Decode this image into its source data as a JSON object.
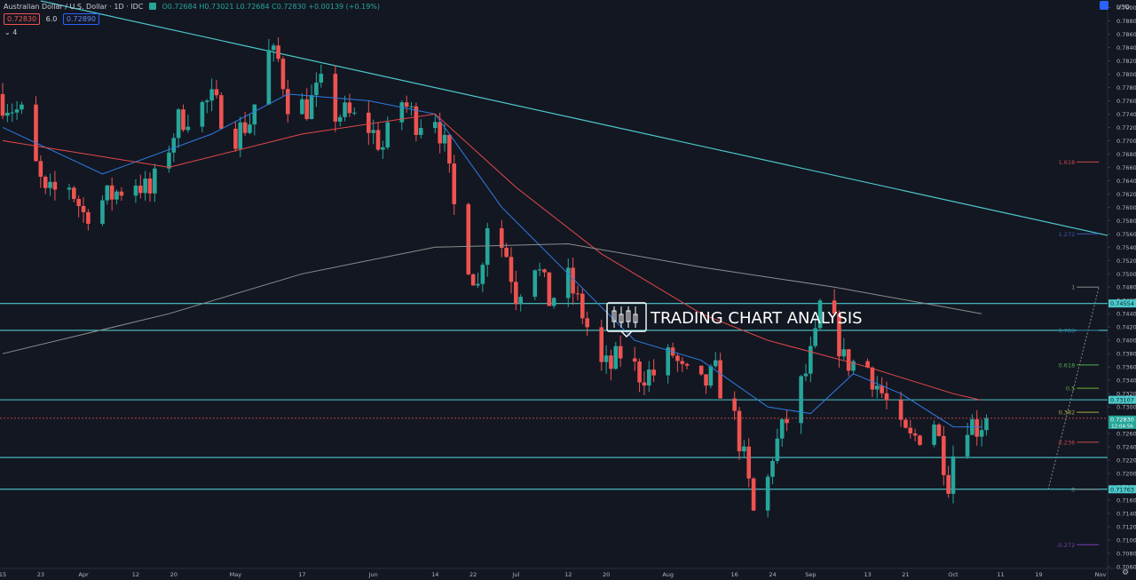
{
  "header": {
    "symbol": "Australian Dollar / U.S. Dollar · 1D · IDC",
    "open": "O0.72684",
    "high": "H0.73021",
    "low": "L0.72684",
    "close": "C0.72830",
    "change": "+0.00139 (+0.19%)",
    "sell_price": "0.72830",
    "spread": "6.0",
    "buy_price": "0.72890",
    "indicator_count": "4"
  },
  "price_axis": {
    "currency": "USD",
    "countdown": "12:04:56"
  },
  "chart_data": {
    "type": "candlestick",
    "title": "",
    "y_axis": {
      "min": 0.706,
      "max": 0.791,
      "tick_step": 0.002,
      "tick_labels": [
        "0.79000",
        "0.78800",
        "0.78600",
        "0.78400",
        "0.78200",
        "0.78000",
        "0.77800",
        "0.77600",
        "0.77400",
        "0.77200",
        "0.77000",
        "0.76800",
        "0.76600",
        "0.76400",
        "0.76200",
        "0.76000",
        "0.75800",
        "0.75600",
        "0.75400",
        "0.75200",
        "0.75000",
        "0.74800",
        "0.74600",
        "0.74400",
        "0.74200",
        "0.74000",
        "0.73800",
        "0.73600",
        "0.73400",
        "0.73200",
        "0.73000",
        "0.72800",
        "0.72600",
        "0.72400",
        "0.72200",
        "0.72000",
        "0.71800",
        "0.71600",
        "0.71400",
        "0.71200",
        "0.71000",
        "0.70800",
        "0.70600"
      ]
    },
    "x_axis": {
      "start": "2021-03-15",
      "end": "2021-11-01",
      "tick_labels": [
        {
          "date": "2021-03-15",
          "label": "15"
        },
        {
          "date": "2021-03-23",
          "label": "23"
        },
        {
          "date": "2021-04-01",
          "label": "Apr"
        },
        {
          "date": "2021-04-12",
          "label": "12"
        },
        {
          "date": "2021-04-20",
          "label": "20"
        },
        {
          "date": "2021-05-03",
          "label": "May"
        },
        {
          "date": "2021-05-17",
          "label": "17"
        },
        {
          "date": "2021-06-01",
          "label": "Jun"
        },
        {
          "date": "2021-06-14",
          "label": "14"
        },
        {
          "date": "2021-06-22",
          "label": "22"
        },
        {
          "date": "2021-07-01",
          "label": "Jul"
        },
        {
          "date": "2021-07-12",
          "label": "12"
        },
        {
          "date": "2021-07-20",
          "label": "20"
        },
        {
          "date": "2021-08-02",
          "label": "Aug"
        },
        {
          "date": "2021-08-16",
          "label": "16"
        },
        {
          "date": "2021-08-24",
          "label": "24"
        },
        {
          "date": "2021-09-01",
          "label": "Sep"
        },
        {
          "date": "2021-09-13",
          "label": "13"
        },
        {
          "date": "2021-09-21",
          "label": "21"
        },
        {
          "date": "2021-10-01",
          "label": "Oct"
        },
        {
          "date": "2021-10-11",
          "label": "11"
        },
        {
          "date": "2021-10-19",
          "label": "19"
        },
        {
          "date": "2021-11-01",
          "label": "Nov"
        }
      ]
    },
    "price_path": {
      "first_date": "2021-03-15",
      "last_date": "2021-10-08",
      "waypoints": [
        [
          "2021-03-15",
          0.776
        ],
        [
          "2021-03-19",
          0.774
        ],
        [
          "2021-03-22",
          0.766
        ],
        [
          "2021-03-24",
          0.7615
        ],
        [
          "2021-03-29",
          0.7635
        ],
        [
          "2021-04-01",
          0.759
        ],
        [
          "2021-04-05",
          0.761
        ],
        [
          "2021-04-12",
          0.764
        ],
        [
          "2021-04-15",
          0.762
        ],
        [
          "2021-04-21",
          0.773
        ],
        [
          "2021-04-23",
          0.774
        ],
        [
          "2021-04-28",
          0.776
        ],
        [
          "2021-05-03",
          0.771
        ],
        [
          "2021-05-06",
          0.773
        ],
        [
          "2021-05-10",
          0.783
        ],
        [
          "2021-05-12",
          0.782
        ],
        [
          "2021-05-14",
          0.776
        ],
        [
          "2021-05-18",
          0.775
        ],
        [
          "2021-05-21",
          0.778
        ],
        [
          "2021-05-24",
          0.774
        ],
        [
          "2021-05-26",
          0.774
        ],
        [
          "2021-05-31",
          0.772
        ],
        [
          "2021-06-03",
          0.769
        ],
        [
          "2021-06-07",
          0.776
        ],
        [
          "2021-06-10",
          0.773
        ],
        [
          "2021-06-14",
          0.774
        ],
        [
          "2021-06-16",
          0.769
        ],
        [
          "2021-06-18",
          0.76
        ],
        [
          "2021-06-21",
          0.752
        ],
        [
          "2021-06-23",
          0.748
        ],
        [
          "2021-06-25",
          0.758
        ],
        [
          "2021-06-29",
          0.753
        ],
        [
          "2021-07-01",
          0.747
        ],
        [
          "2021-07-05",
          0.752
        ],
        [
          "2021-07-08",
          0.746
        ],
        [
          "2021-07-12",
          0.749
        ],
        [
          "2021-07-15",
          0.744
        ],
        [
          "2021-07-19",
          0.736
        ],
        [
          "2021-07-21",
          0.736
        ],
        [
          "2021-07-23",
          0.738
        ],
        [
          "2021-07-27",
          0.735
        ],
        [
          "2021-07-30",
          0.735
        ],
        [
          "2021-08-03",
          0.738
        ],
        [
          "2021-08-05",
          0.735
        ],
        [
          "2021-08-09",
          0.733
        ],
        [
          "2021-08-12",
          0.735
        ],
        [
          "2021-08-13",
          0.733
        ],
        [
          "2021-08-16",
          0.728
        ],
        [
          "2021-08-18",
          0.722
        ],
        [
          "2021-08-20",
          0.714
        ],
        [
          "2021-08-23",
          0.719
        ],
        [
          "2021-08-24",
          0.723
        ],
        [
          "2021-08-27",
          0.728
        ],
        [
          "2021-08-31",
          0.735
        ],
        [
          "2021-09-02",
          0.74
        ],
        [
          "2021-09-03",
          0.745
        ],
        [
          "2021-09-06",
          0.742
        ],
        [
          "2021-09-08",
          0.737
        ],
        [
          "2021-09-13",
          0.736
        ],
        [
          "2021-09-16",
          0.732
        ],
        [
          "2021-09-20",
          0.726
        ],
        [
          "2021-09-22",
          0.725
        ],
        [
          "2021-09-24",
          0.726
        ],
        [
          "2021-09-27",
          0.728
        ],
        [
          "2021-09-28",
          0.725
        ],
        [
          "2021-09-30",
          0.719
        ],
        [
          "2021-10-01",
          0.723
        ],
        [
          "2021-10-04",
          0.728
        ],
        [
          "2021-10-06",
          0.727
        ],
        [
          "2021-10-08",
          0.7283
        ]
      ]
    },
    "moving_averages": [
      {
        "color": "#2e7ce4",
        "points": [
          [
            "2021-03-15",
            0.772
          ],
          [
            "2021-04-05",
            0.765
          ],
          [
            "2021-04-28",
            0.771
          ],
          [
            "2021-05-14",
            0.777
          ],
          [
            "2021-05-31",
            0.776
          ],
          [
            "2021-06-14",
            0.774
          ],
          [
            "2021-06-28",
            0.76
          ],
          [
            "2021-07-12",
            0.75
          ],
          [
            "2021-07-26",
            0.74
          ],
          [
            "2021-08-09",
            0.737
          ],
          [
            "2021-08-23",
            0.73
          ],
          [
            "2021-09-01",
            0.729
          ],
          [
            "2021-09-10",
            0.735
          ],
          [
            "2021-09-20",
            0.732
          ],
          [
            "2021-10-01",
            0.727
          ],
          [
            "2021-10-07",
            0.727
          ]
        ]
      },
      {
        "color": "#e54848",
        "points": [
          [
            "2021-03-15",
            0.77
          ],
          [
            "2021-04-19",
            0.766
          ],
          [
            "2021-05-17",
            0.771
          ],
          [
            "2021-06-14",
            0.774
          ],
          [
            "2021-07-01",
            0.763
          ],
          [
            "2021-07-19",
            0.753
          ],
          [
            "2021-08-09",
            0.744
          ],
          [
            "2021-08-23",
            0.74
          ],
          [
            "2021-09-13",
            0.736
          ],
          [
            "2021-10-01",
            0.732
          ],
          [
            "2021-10-07",
            0.731
          ]
        ]
      },
      {
        "color": "#8c8c8c",
        "points": [
          [
            "2021-03-15",
            0.738
          ],
          [
            "2021-04-19",
            0.744
          ],
          [
            "2021-05-17",
            0.75
          ],
          [
            "2021-06-14",
            0.754
          ],
          [
            "2021-07-12",
            0.7545
          ],
          [
            "2021-08-09",
            0.751
          ],
          [
            "2021-09-06",
            0.748
          ],
          [
            "2021-10-07",
            0.744
          ]
        ]
      }
    ],
    "trendline": {
      "from": [
        "2021-03-23",
        0.791
      ],
      "to": [
        "2021-11-01",
        0.756
      ],
      "color": "#4dc9cb"
    },
    "horizontal_levels": [
      {
        "price": 0.74554,
        "label": "0.74554"
      },
      {
        "price": 0.7415,
        "label": ""
      },
      {
        "price": 0.73107,
        "label": "0.73107"
      },
      {
        "price": 0.7224,
        "label": ""
      },
      {
        "price": 0.71763,
        "label": "0.71763"
      }
    ],
    "last_price": {
      "price": 0.7283,
      "label": "0.72830"
    },
    "fibonacci": {
      "from": [
        "2021-10-21",
        0.7176
      ],
      "to": [
        "2021-10-27",
        0.748
      ],
      "levels": [
        {
          "label": "1.618",
          "price": 0.7668,
          "color": "#c74848"
        },
        {
          "label": "1.272",
          "price": 0.756,
          "color": "#3b59b0"
        },
        {
          "label": "1",
          "price": 0.748,
          "color": "#888888"
        },
        {
          "label": "0.786",
          "price": 0.7415,
          "color": "#2b7a9a"
        },
        {
          "label": "0.618",
          "price": 0.7363,
          "color": "#4caf50"
        },
        {
          "label": "0.5",
          "price": 0.7328,
          "color": "#6fae3a"
        },
        {
          "label": "0.382",
          "price": 0.7292,
          "color": "#a8a83a"
        },
        {
          "label": "0.236",
          "price": 0.7247,
          "color": "#c74848"
        },
        {
          "label": "0",
          "price": 0.7176,
          "color": "#888888"
        },
        {
          "label": "-0.272",
          "price": 0.7093,
          "color": "#7b3fb0"
        }
      ]
    },
    "watermark": "TRADING CHART ANALYSIS",
    "colors": {
      "up": "#26a69a",
      "down": "#ef5350",
      "grid": "#1e2230",
      "level": "#4dc9cb",
      "last": "#26a69a"
    }
  }
}
